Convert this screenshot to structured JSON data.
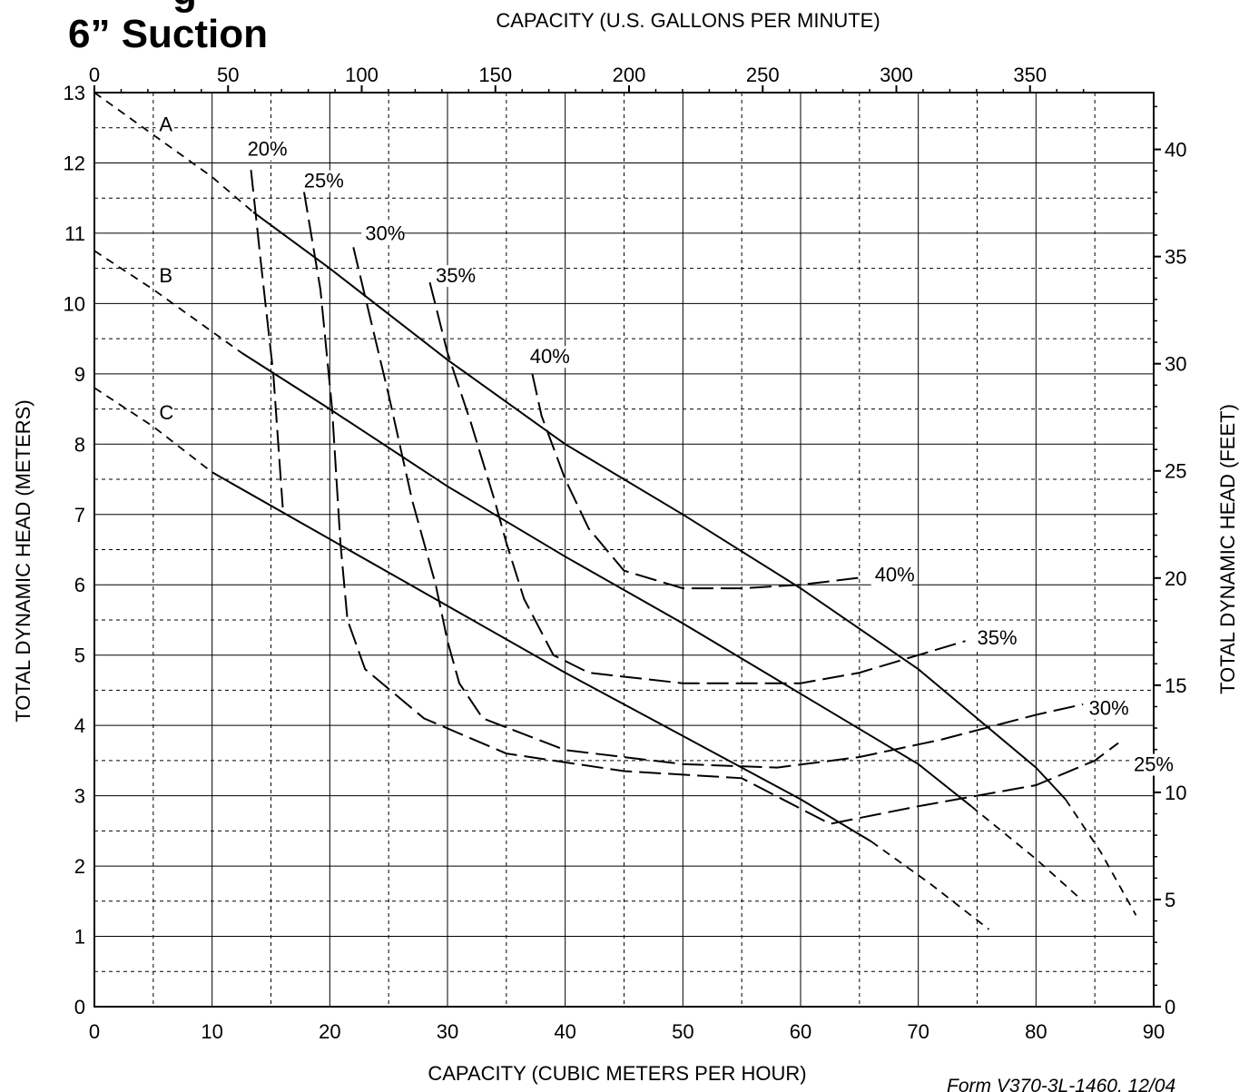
{
  "page": {
    "title_line1": "g",
    "title_line2": "6” Suction",
    "footer": "Form V370-3L-1460, 12/04"
  },
  "chart_data": {
    "type": "line",
    "title": "6” Suction",
    "xlabel_bottom": "CAPACITY (CUBIC METERS PER HOUR)",
    "xlabel_top": "CAPACITY (U.S. GALLONS PER MINUTE)",
    "ylabel_left": "TOTAL DYNAMIC HEAD (METERS)",
    "ylabel_right": "TOTAL DYNAMIC HEAD (FEET)",
    "xlim": [
      0,
      90
    ],
    "ylim": [
      0,
      13
    ],
    "grid": true,
    "x_ticks_bottom": [
      0,
      10,
      20,
      30,
      40,
      50,
      60,
      70,
      80,
      90
    ],
    "x_ticks_top_gpm": [
      0,
      50,
      100,
      150,
      200,
      250,
      300,
      350
    ],
    "y_ticks_left": [
      0,
      1,
      2,
      3,
      4,
      5,
      6,
      7,
      8,
      9,
      10,
      11,
      12,
      13
    ],
    "y_ticks_right_ft": [
      0,
      5,
      10,
      15,
      20,
      25,
      30,
      35,
      40
    ],
    "head_curves": [
      {
        "name": "A",
        "solid": [
          [
            13.5,
            11.3
          ],
          [
            20,
            10.5
          ],
          [
            30,
            9.2
          ],
          [
            40,
            8.0
          ],
          [
            50,
            7.0
          ],
          [
            60,
            5.95
          ],
          [
            70,
            4.8
          ],
          [
            80,
            3.4
          ],
          [
            82.5,
            2.95
          ]
        ],
        "dashed_left": [
          [
            0,
            13.0
          ],
          [
            5,
            12.4
          ],
          [
            10,
            11.8
          ],
          [
            13.5,
            11.3
          ]
        ],
        "dashed_right": [
          [
            82.5,
            2.95
          ],
          [
            85.5,
            2.2
          ],
          [
            88.5,
            1.3
          ]
        ]
      },
      {
        "name": "B",
        "solid": [
          [
            12.5,
            9.3
          ],
          [
            20,
            8.5
          ],
          [
            30,
            7.4
          ],
          [
            40,
            6.4
          ],
          [
            50,
            5.45
          ],
          [
            60,
            4.45
          ],
          [
            70,
            3.45
          ],
          [
            74.5,
            2.85
          ]
        ],
        "dashed_left": [
          [
            0,
            10.75
          ],
          [
            5,
            10.2
          ],
          [
            10,
            9.6
          ],
          [
            12.5,
            9.3
          ]
        ],
        "dashed_right": [
          [
            74.5,
            2.85
          ],
          [
            80,
            2.1
          ],
          [
            84,
            1.5
          ]
        ]
      },
      {
        "name": "C",
        "solid": [
          [
            10,
            7.6
          ],
          [
            20,
            6.65
          ],
          [
            30,
            5.7
          ],
          [
            40,
            4.75
          ],
          [
            50,
            3.85
          ],
          [
            60,
            2.95
          ],
          [
            66,
            2.35
          ]
        ],
        "dashed_left": [
          [
            0,
            8.8
          ],
          [
            5,
            8.25
          ],
          [
            10,
            7.6
          ]
        ],
        "dashed_right": [
          [
            66,
            2.35
          ],
          [
            71,
            1.75
          ],
          [
            76,
            1.1
          ]
        ]
      }
    ],
    "efficiency_curves": [
      {
        "name": "20%",
        "label": "20%",
        "points": [
          [
            13.3,
            11.9
          ],
          [
            14.2,
            10.5
          ],
          [
            15.2,
            9.0
          ],
          [
            16.0,
            7.1
          ]
        ]
      },
      {
        "name": "25%",
        "label": "25%",
        "points": [
          [
            17.8,
            11.6
          ],
          [
            19.2,
            10.2
          ],
          [
            20.2,
            8.5
          ],
          [
            20.9,
            6.6
          ],
          [
            21.5,
            5.5
          ],
          [
            23,
            4.8
          ],
          [
            28,
            4.1
          ],
          [
            35,
            3.6
          ],
          [
            45,
            3.35
          ],
          [
            55,
            3.25
          ],
          [
            62.5,
            2.6
          ],
          [
            70,
            2.85
          ],
          [
            80,
            3.15
          ],
          [
            85,
            3.5
          ],
          [
            87,
            3.75
          ]
        ]
      },
      {
        "name": "30%",
        "label": "30%",
        "points": [
          [
            22,
            10.8
          ],
          [
            23,
            10.1
          ],
          [
            25,
            8.7
          ],
          [
            27,
            7.2
          ],
          [
            29,
            6.0
          ],
          [
            30,
            5.2
          ],
          [
            31,
            4.6
          ],
          [
            33,
            4.1
          ],
          [
            40,
            3.65
          ],
          [
            50,
            3.45
          ],
          [
            58,
            3.4
          ],
          [
            65,
            3.55
          ],
          [
            72,
            3.8
          ],
          [
            80,
            4.15
          ],
          [
            84,
            4.3
          ]
        ]
      },
      {
        "name": "35%",
        "label": "35%",
        "points": [
          [
            28.5,
            10.3
          ],
          [
            30,
            9.3
          ],
          [
            32,
            8.3
          ],
          [
            34,
            7.2
          ],
          [
            35,
            6.6
          ],
          [
            36.5,
            5.8
          ],
          [
            39,
            5.0
          ],
          [
            42,
            4.75
          ],
          [
            50,
            4.6
          ],
          [
            60,
            4.6
          ],
          [
            65,
            4.75
          ],
          [
            70,
            5.0
          ],
          [
            74,
            5.2
          ]
        ]
      },
      {
        "name": "40%",
        "label": "40%",
        "points": [
          [
            37.2,
            9.0
          ],
          [
            38,
            8.4
          ],
          [
            40,
            7.5
          ],
          [
            42,
            6.8
          ],
          [
            45,
            6.2
          ],
          [
            50,
            5.95
          ],
          [
            55,
            5.95
          ],
          [
            60,
            6.0
          ],
          [
            65,
            6.1
          ]
        ]
      }
    ],
    "curve_labels": [
      {
        "text": "A",
        "x": 5.5,
        "y": 12.45
      },
      {
        "text": "B",
        "x": 5.5,
        "y": 10.3
      },
      {
        "text": "C",
        "x": 5.5,
        "y": 8.35
      },
      {
        "text": "20%",
        "x": 13.0,
        "y": 12.1
      },
      {
        "text": "25%",
        "x": 17.8,
        "y": 11.65
      },
      {
        "text": "30%",
        "x": 23.0,
        "y": 10.9
      },
      {
        "text": "35%",
        "x": 29.0,
        "y": 10.3
      },
      {
        "text": "40%",
        "x": 37.0,
        "y": 9.15
      },
      {
        "text": "40%",
        "x": 66.3,
        "y": 6.05
      },
      {
        "text": "35%",
        "x": 75.0,
        "y": 5.15
      },
      {
        "text": "30%",
        "x": 84.5,
        "y": 4.15
      },
      {
        "text": "25%",
        "x": 88.3,
        "y": 3.35
      }
    ]
  }
}
